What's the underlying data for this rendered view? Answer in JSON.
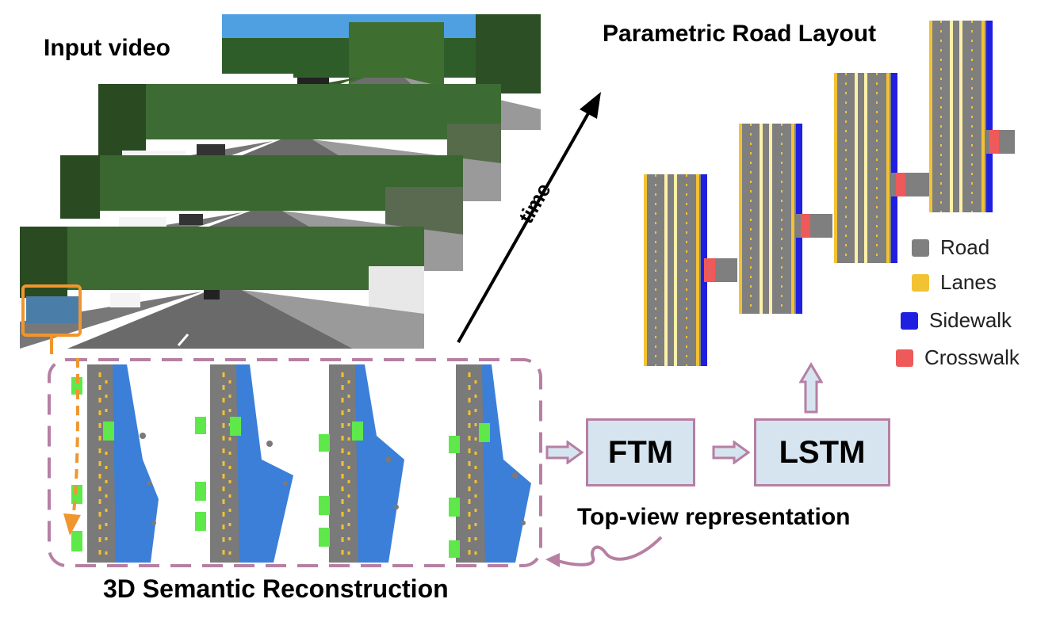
{
  "labels": {
    "input_video": "Input video",
    "parametric_road_layout": "Parametric Road Layout",
    "time": "time",
    "reconstruction": "3D Semantic Reconstruction",
    "top_view": "Top-view representation"
  },
  "blocks": {
    "ftm": "FTM",
    "lstm": "LSTM"
  },
  "legend": [
    {
      "label": "Road",
      "color": "#7f7f7f"
    },
    {
      "label": "Lanes",
      "color": "#f2c233"
    },
    {
      "label": "Sidewalk",
      "color": "#1f1fe0"
    },
    {
      "label": "Crosswalk",
      "color": "#ee5a5a"
    }
  ],
  "colors": {
    "accent": "#b67fa3",
    "block_fill": "#d6e4f0",
    "orange_highlight": "#f0962e",
    "point_road": "#7a7a7a",
    "point_sidewalk": "#3b7fd9",
    "point_car": "#5ee84a"
  }
}
